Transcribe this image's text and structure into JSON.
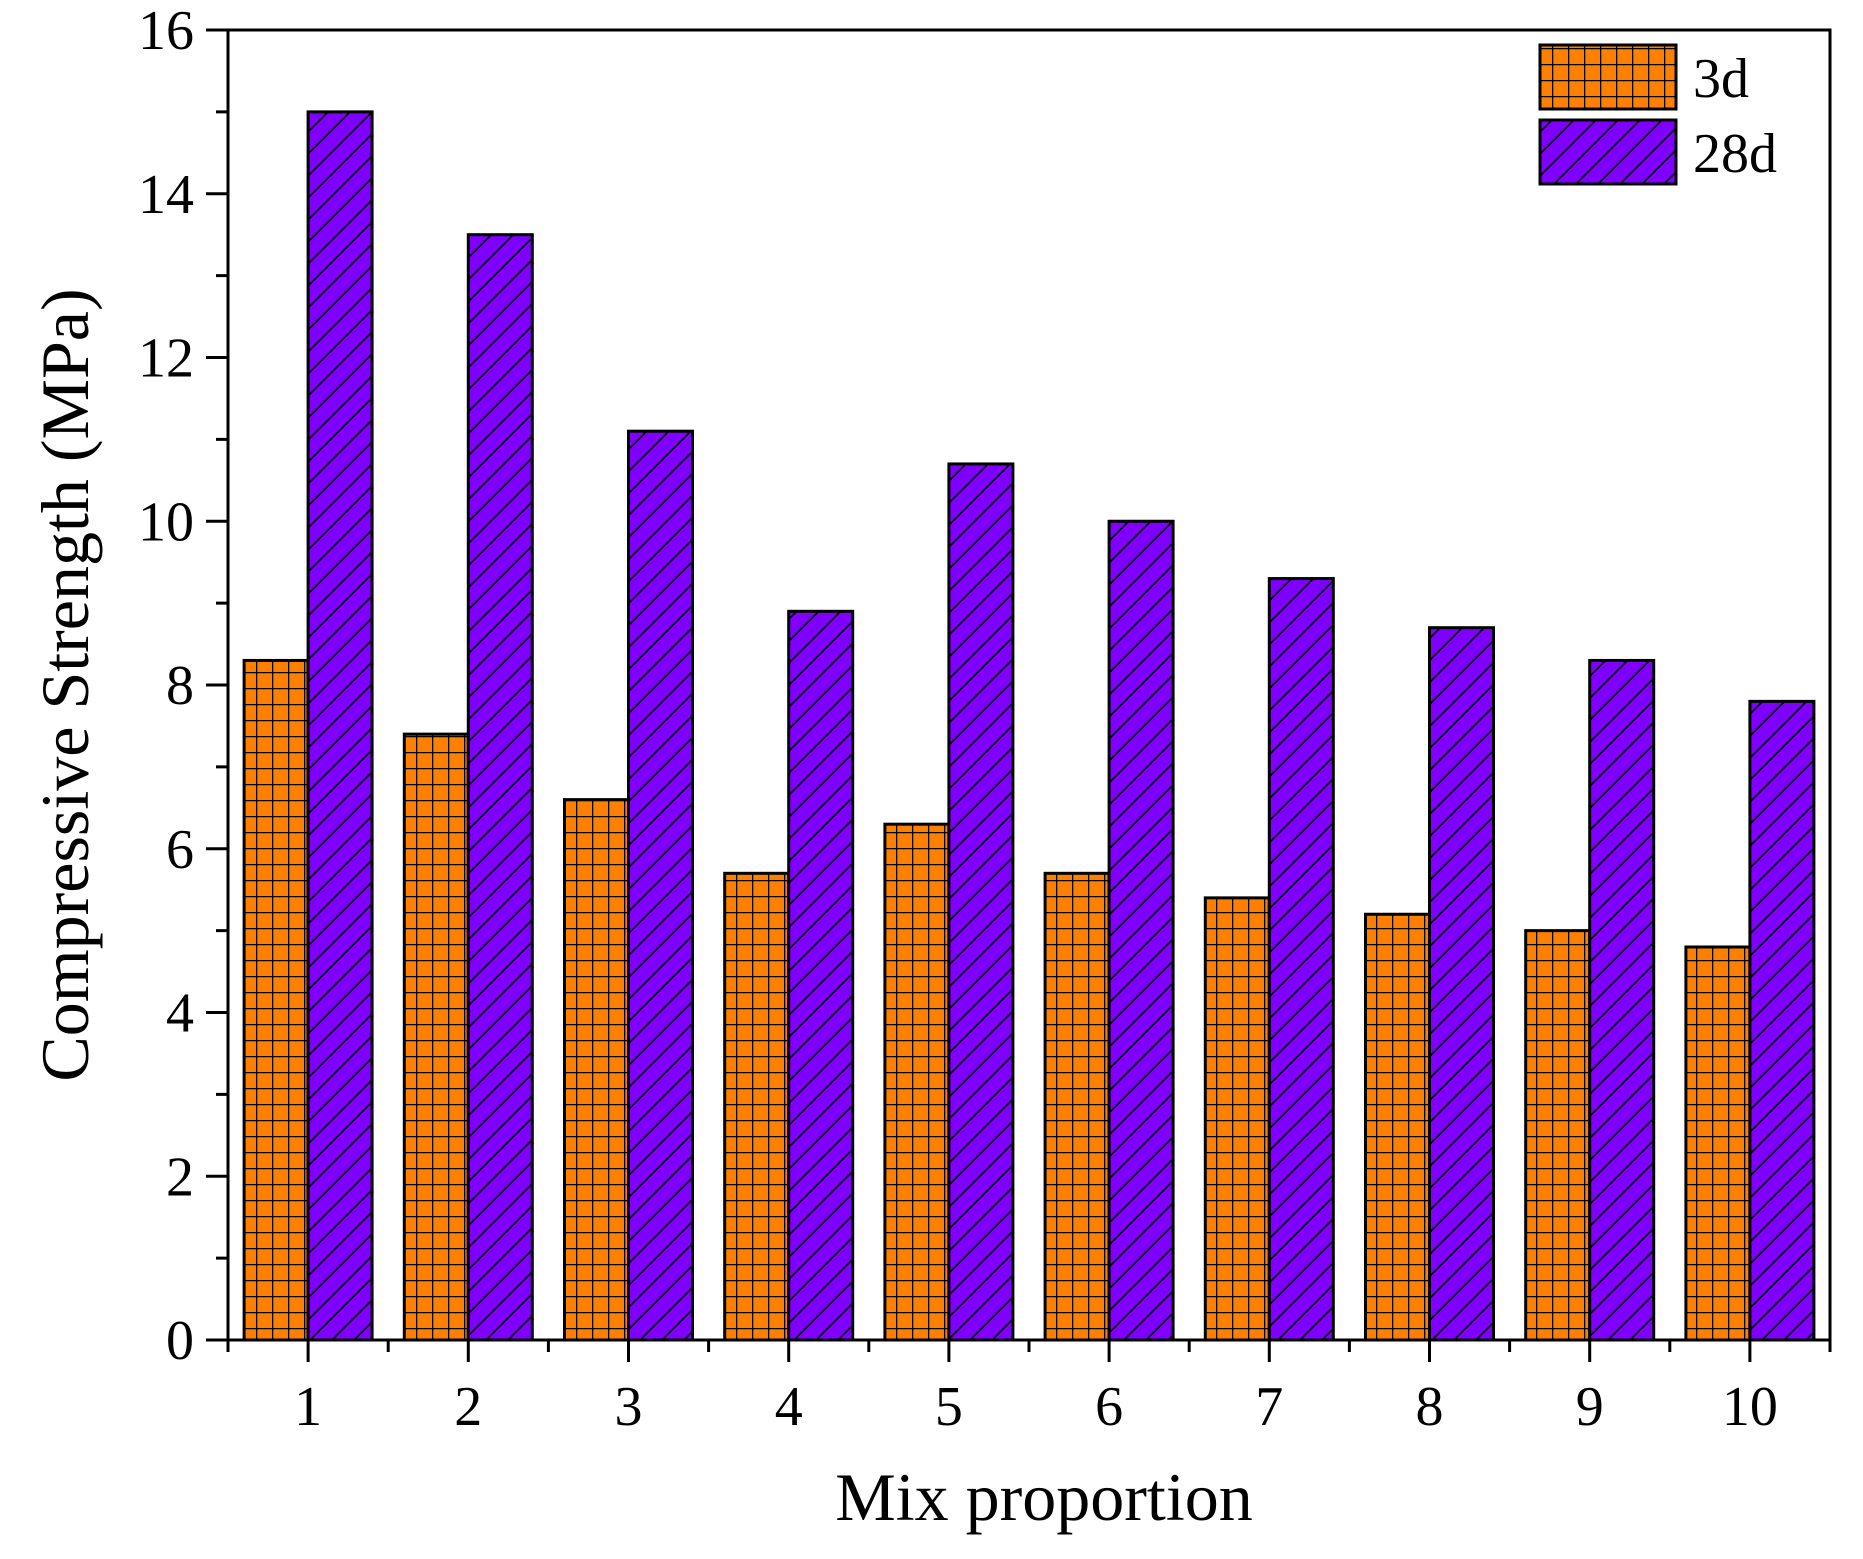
{
  "chart_data": {
    "type": "bar",
    "xlabel": "Mix proportion",
    "ylabel": "Compressive Strength (MPa)",
    "categories": [
      "1",
      "2",
      "3",
      "4",
      "5",
      "6",
      "7",
      "8",
      "9",
      "10"
    ],
    "ylim": [
      0,
      16
    ],
    "yticks": [
      "0",
      "2",
      "4",
      "6",
      "8",
      "10",
      "12",
      "14",
      "16"
    ],
    "ytick_values": [
      0,
      2,
      4,
      6,
      8,
      10,
      12,
      14,
      16
    ],
    "legend_position": "top-right",
    "series": [
      {
        "name": "3d",
        "values": [
          8.3,
          7.4,
          6.6,
          5.7,
          6.3,
          5.7,
          5.4,
          5.2,
          5.0,
          4.8
        ],
        "color": "#ff8000",
        "pattern": "grid"
      },
      {
        "name": "28d",
        "values": [
          15.0,
          13.5,
          11.1,
          8.9,
          10.7,
          10.0,
          9.3,
          8.7,
          8.3,
          7.8
        ],
        "color": "#8000ff",
        "pattern": "diagonal"
      }
    ]
  }
}
